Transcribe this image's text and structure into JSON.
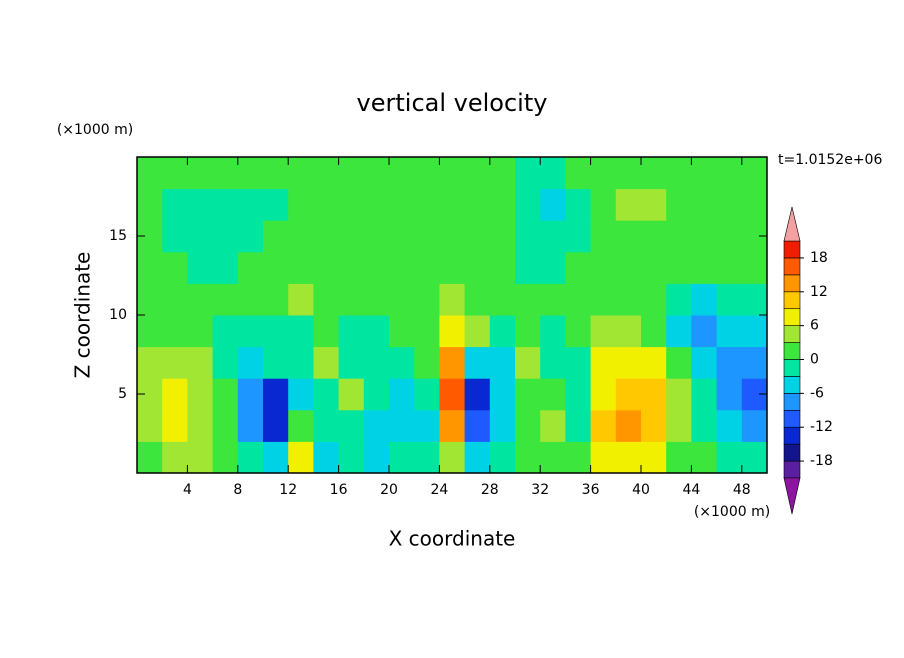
{
  "chart_data": {
    "type": "contour",
    "title": "vertical velocity",
    "x_label": "X coordinate",
    "y_label": "Z coordinate",
    "x_unit_label": "(×1000 m)",
    "y_unit_label": "(×1000 m)",
    "annotation": "t=1.0152e+06",
    "xlim": [
      0,
      50
    ],
    "ylim": [
      0,
      20
    ],
    "xticks": [
      4,
      8,
      12,
      16,
      20,
      24,
      28,
      32,
      36,
      40,
      44,
      48
    ],
    "yticks": [
      5,
      10,
      15
    ],
    "x": [
      1,
      3,
      5,
      7,
      9,
      11,
      13,
      15,
      17,
      19,
      21,
      23,
      25,
      27,
      29,
      31,
      33,
      35,
      37,
      39,
      41,
      43,
      45,
      47,
      49
    ],
    "y": [
      1,
      3,
      5,
      7,
      9,
      11,
      13,
      15,
      17,
      19
    ],
    "z": [
      [
        2,
        3,
        3,
        1,
        -3,
        -5,
        6,
        -4,
        -3,
        -4,
        -3,
        -2,
        4,
        -4,
        -2,
        1,
        2,
        1,
        6,
        8,
        6,
        2,
        1,
        -1,
        -3
      ],
      [
        3,
        7,
        5,
        1,
        -9,
        -14,
        2,
        -2,
        -3,
        -5,
        -4,
        -4,
        12,
        -11,
        -4,
        2,
        4,
        -1,
        10,
        12,
        11,
        3,
        -1,
        -6,
        -9
      ],
      [
        4,
        7,
        5,
        1,
        -8,
        -13,
        -4,
        -1,
        4,
        -3,
        -4,
        -1,
        17,
        -13,
        -6,
        1,
        2,
        -1,
        8,
        10,
        9,
        3,
        -3,
        -8,
        -10
      ],
      [
        3,
        4,
        3,
        -1,
        -4,
        -3,
        -1,
        3,
        -2,
        -3,
        -1,
        2,
        12,
        -4,
        -4,
        3,
        -2,
        -1,
        7,
        8,
        6,
        2,
        -6,
        -9,
        -8
      ],
      [
        2,
        1,
        1,
        -1,
        -2,
        -2,
        -1,
        1,
        -1,
        -1,
        1,
        2,
        6,
        3,
        -1,
        2,
        -3,
        1,
        4,
        3,
        2,
        -4,
        -8,
        -6,
        -4
      ],
      [
        1,
        2,
        2,
        1,
        1,
        2,
        3,
        2,
        1,
        2,
        2,
        1,
        3,
        2,
        1,
        1,
        1,
        2,
        2,
        1,
        1,
        -2,
        -4,
        -3,
        -1
      ],
      [
        2,
        1,
        -1,
        -1,
        1,
        1,
        2,
        1,
        1,
        1,
        1,
        1,
        2,
        1,
        1,
        -1,
        -1,
        1,
        1,
        1,
        1,
        1,
        1,
        2,
        1
      ],
      [
        2,
        -1,
        -2,
        -2,
        -1,
        1,
        1,
        1,
        1,
        1,
        1,
        1,
        1,
        2,
        1,
        -2,
        -3,
        -1,
        1,
        2,
        2,
        1,
        1,
        1,
        1
      ],
      [
        1,
        -1,
        -1,
        -2,
        -2,
        -1,
        1,
        1,
        1,
        2,
        1,
        1,
        1,
        1,
        1,
        -2,
        -4,
        -1,
        1,
        4,
        4,
        1,
        2,
        1,
        1
      ],
      [
        1,
        1,
        2,
        1,
        1,
        1,
        1,
        2,
        1,
        1,
        1,
        1,
        2,
        1,
        1,
        -1,
        -1,
        1,
        1,
        2,
        1,
        1,
        1,
        1,
        1
      ]
    ],
    "colorbar": {
      "levels": [
        -21,
        -18,
        -15,
        -12,
        -9,
        -6,
        -3,
        0,
        3,
        6,
        9,
        12,
        15,
        18,
        21
      ],
      "colors": [
        "#5a1ea0",
        "#14148c",
        "#0a28d2",
        "#1e5aff",
        "#1e96ff",
        "#00d2e6",
        "#00e6a0",
        "#3ce63c",
        "#a0e632",
        "#f0f000",
        "#ffc800",
        "#ff9600",
        "#ff5a00",
        "#f01e00"
      ],
      "extend_colors": [
        "#8c14a0",
        "#f4a0a0"
      ],
      "ticks": [
        -18,
        -12,
        -6,
        0,
        6,
        12,
        18
      ]
    }
  }
}
